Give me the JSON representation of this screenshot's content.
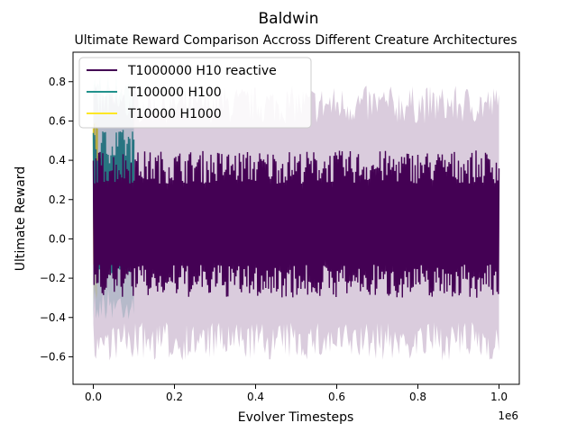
{
  "chart_data": {
    "type": "line",
    "suptitle": "Baldwin",
    "title": "Ultimate Reward Comparison Accross Different Creature Architectures",
    "xlabel": "Evolver Timesteps",
    "ylabel": "Ultimate Reward",
    "x_offset_label": "1e6",
    "xlim": [
      -50000,
      1050000
    ],
    "ylim": [
      -0.74,
      0.95
    ],
    "xticks": [
      0,
      200000,
      400000,
      600000,
      800000,
      1000000
    ],
    "xtick_labels": [
      "0.0",
      "0.2",
      "0.4",
      "0.6",
      "0.8",
      "1.0"
    ],
    "yticks": [
      -0.6,
      -0.4,
      -0.2,
      0.0,
      0.2,
      0.4,
      0.6,
      0.8
    ],
    "ytick_labels": [
      "−0.6",
      "−0.4",
      "−0.2",
      "0.0",
      "0.2",
      "0.4",
      "0.6",
      "0.8"
    ],
    "legend_position": "top-left",
    "grid": false,
    "series": [
      {
        "name": "T1000000 H10 reactive",
        "color": "#440154",
        "x_range": [
          0,
          1000000
        ],
        "mean_band": [
          -0.3,
          0.45
        ],
        "std_band": [
          -0.62,
          0.78
        ],
        "band_alpha": 0.2
      },
      {
        "name": "T100000 H100",
        "color": "#21918c",
        "x_range": [
          0,
          100000
        ],
        "mean_band": [
          -0.22,
          0.56
        ],
        "std_band": [
          -0.42,
          0.85
        ],
        "band_alpha": 0.2
      },
      {
        "name": "T10000 H1000",
        "color": "#fde725",
        "x_range": [
          0,
          10000
        ],
        "mean_band": [
          -0.2,
          0.62
        ],
        "std_band": [
          -0.34,
          0.64
        ],
        "band_alpha": 0.2
      }
    ]
  }
}
